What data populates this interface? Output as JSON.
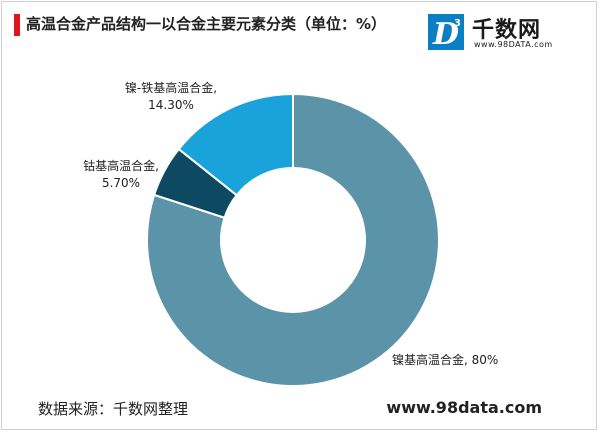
{
  "brand": {
    "logo_letter": "D",
    "logo_superscript": "3",
    "name": "千数网",
    "url_small": "www.98DATA.com"
  },
  "footer": {
    "source": "数据来源：千数网整理",
    "website": "www.98data.com"
  },
  "colors": {
    "title_bar": "#e0161d",
    "logo_blue": "#0a7fc4"
  },
  "chart_data": {
    "type": "pie",
    "donut": true,
    "title": "高温合金产品结构一以合金主要元素分类（单位：%）",
    "slices": [
      {
        "label": "镍基高温合金, 80%",
        "line1": "镍基高温合金, 80%",
        "line2": "",
        "value": 80,
        "color": "#5b93a9"
      },
      {
        "label": "钴基高温合金, 5.70%",
        "line1": "钴基高温合金,",
        "line2": "5.70%",
        "value": 5.7,
        "color": "#0d4a61"
      },
      {
        "label": "镍-铁基高温合金, 14.30%",
        "line1": "镍-铁基高温合金,",
        "line2": "14.30%",
        "value": 14.3,
        "color": "#1aa3da"
      }
    ]
  }
}
